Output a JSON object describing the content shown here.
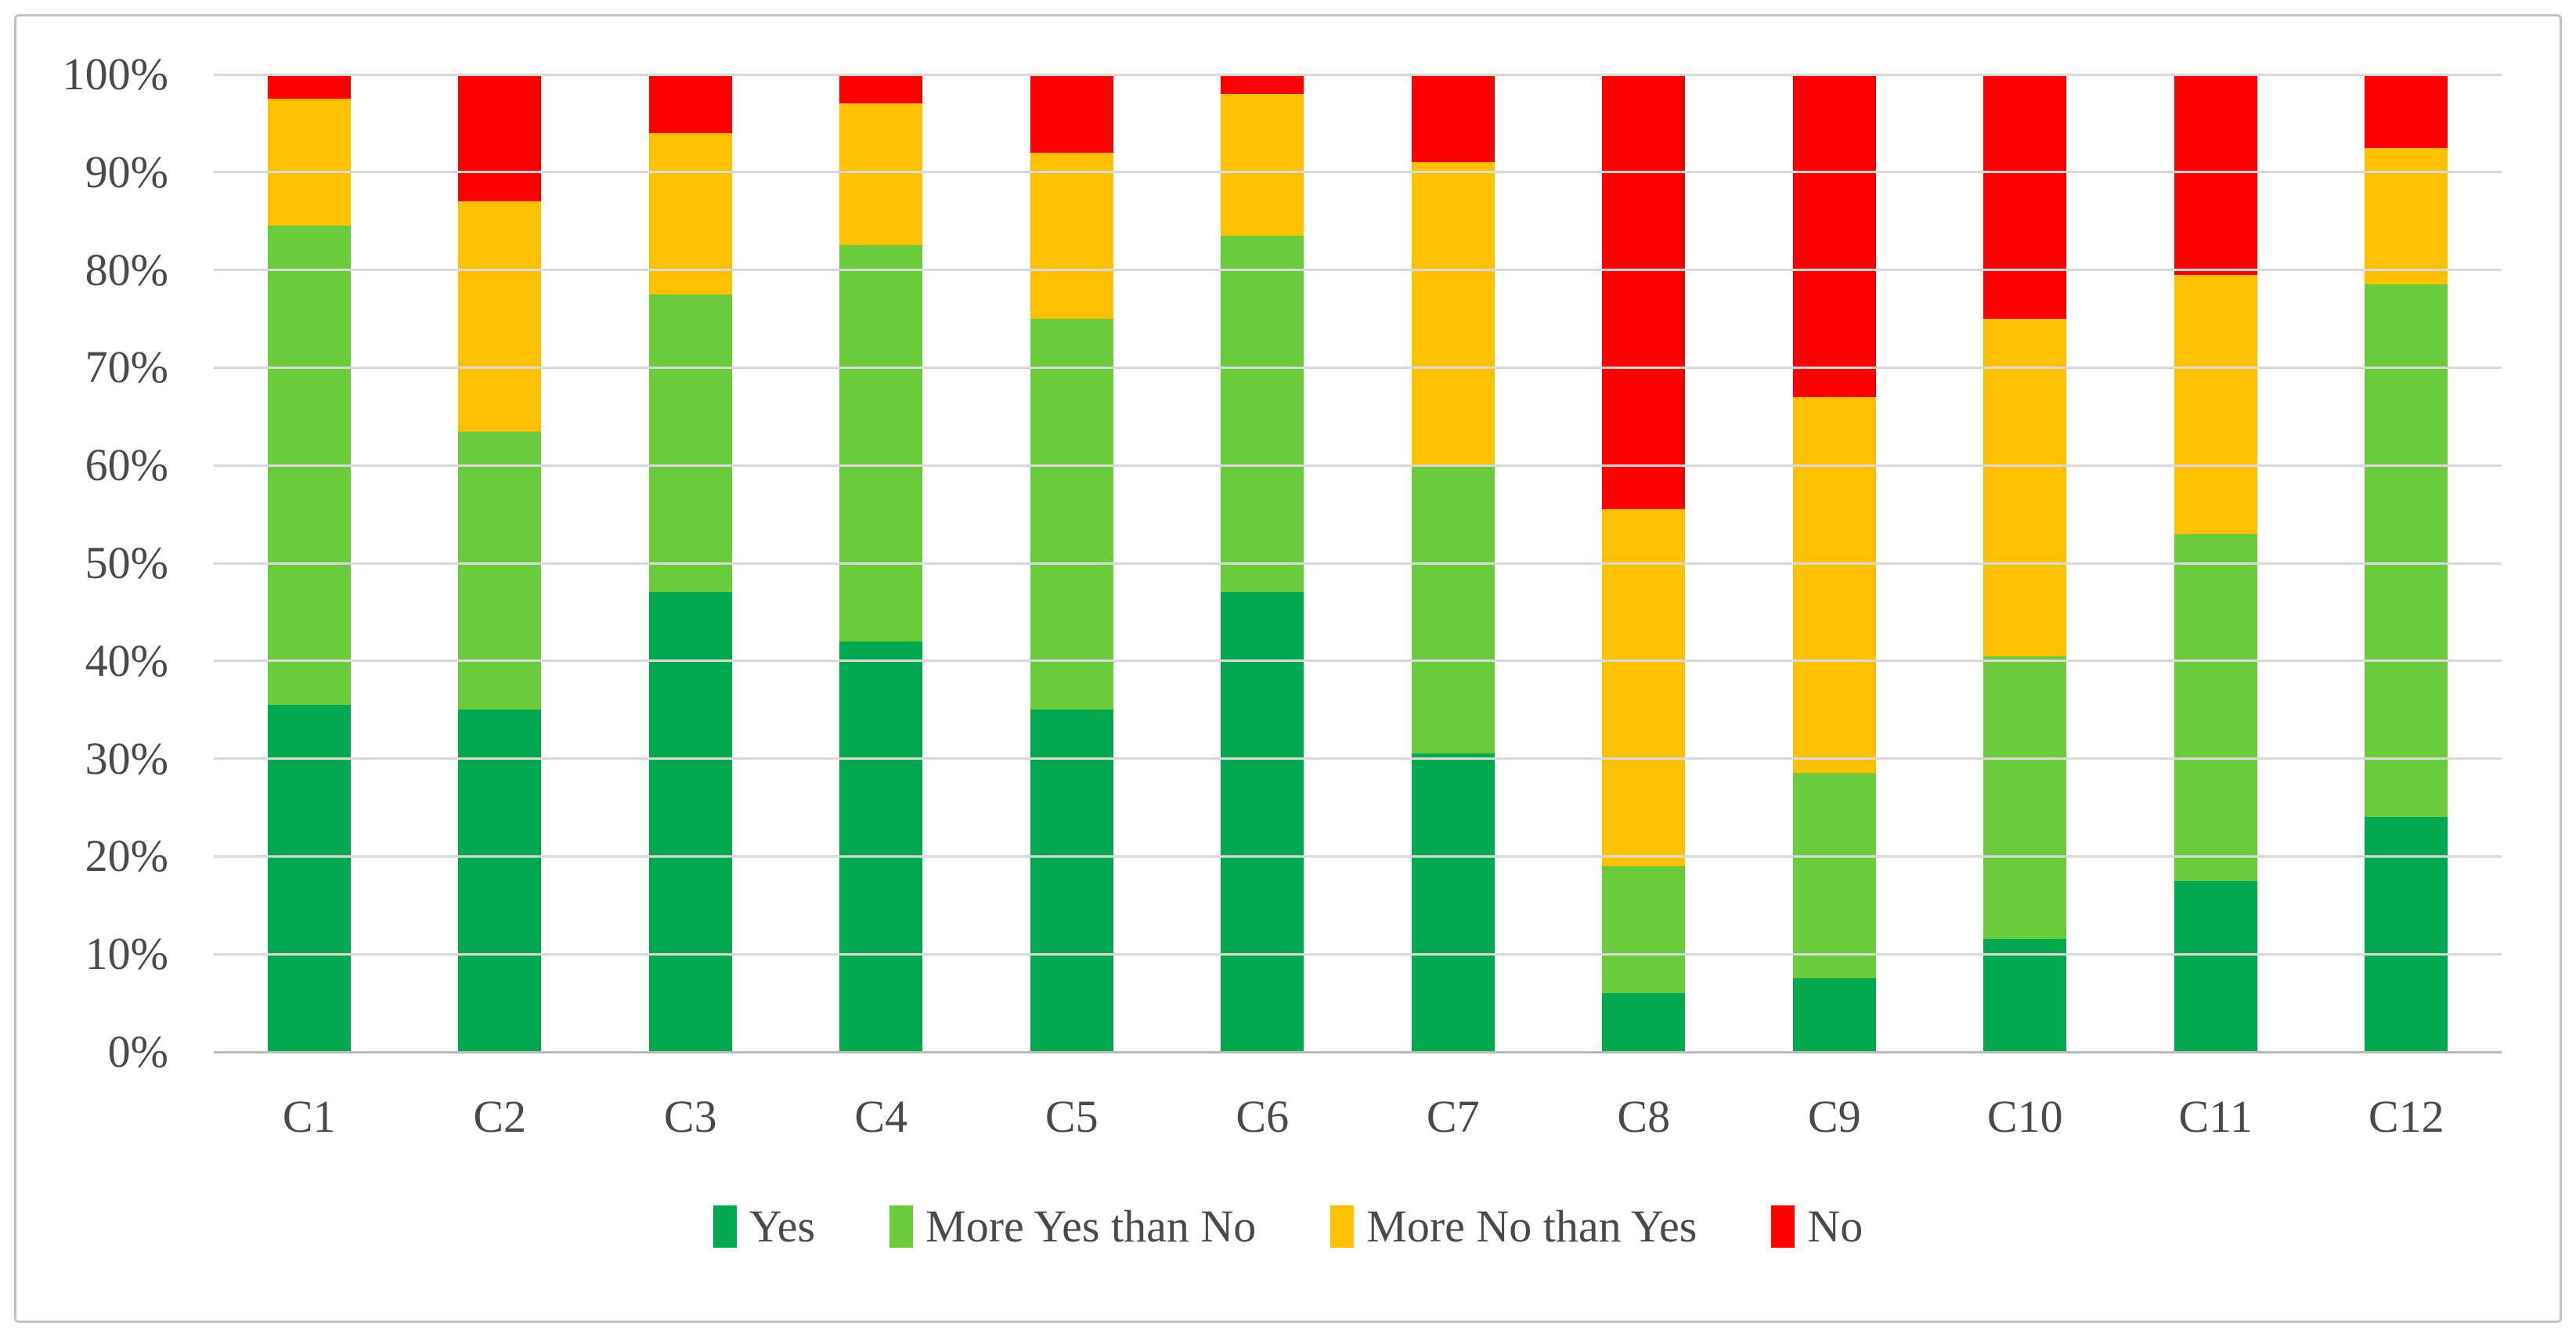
{
  "figure": {
    "background": "#FFFFFF",
    "border_color": "#C3C3C3"
  },
  "chart_data": {
    "type": "bar",
    "stacked": true,
    "stacking": "percent",
    "orientation": "vertical",
    "title": "",
    "xlabel": "",
    "ylabel": "",
    "categories": [
      "C1",
      "C2",
      "C3",
      "C4",
      "C5",
      "C6",
      "C7",
      "C8",
      "C9",
      "C10",
      "C11",
      "C12"
    ],
    "series": [
      {
        "name": "Yes",
        "color": "#00A94E",
        "values": [
          35.5,
          35,
          47,
          42,
          35,
          47,
          30.5,
          6,
          7.5,
          11.5,
          17.5,
          24
        ]
      },
      {
        "name": "More Yes than No",
        "color": "#6BCC3B",
        "values": [
          49,
          28.5,
          30.5,
          40.5,
          40,
          36.5,
          29.5,
          13,
          21,
          29,
          35.5,
          54.5
        ]
      },
      {
        "name": "More No than Yes",
        "color": "#FFC000",
        "values": [
          13,
          23.5,
          16.5,
          14.5,
          17,
          14.5,
          31,
          36.5,
          38.5,
          34.5,
          26.5,
          14
        ]
      },
      {
        "name": "No",
        "color": "#FF0000",
        "values": [
          2.5,
          13,
          6,
          3,
          8,
          2,
          9,
          44.5,
          33,
          25,
          20.5,
          7.5
        ]
      }
    ],
    "ylim": [
      0,
      100
    ],
    "y_ticks": [
      "100%",
      "90%",
      "80%",
      "70%",
      "60%",
      "50%",
      "40%",
      "30%",
      "20%",
      "10%",
      "0%"
    ],
    "grid": true,
    "gridline_color": "#D9D9D9",
    "axis_line_color": "#B9B9B9",
    "tick_label_color": "#4A4A4A",
    "legend_position": "bottom"
  }
}
